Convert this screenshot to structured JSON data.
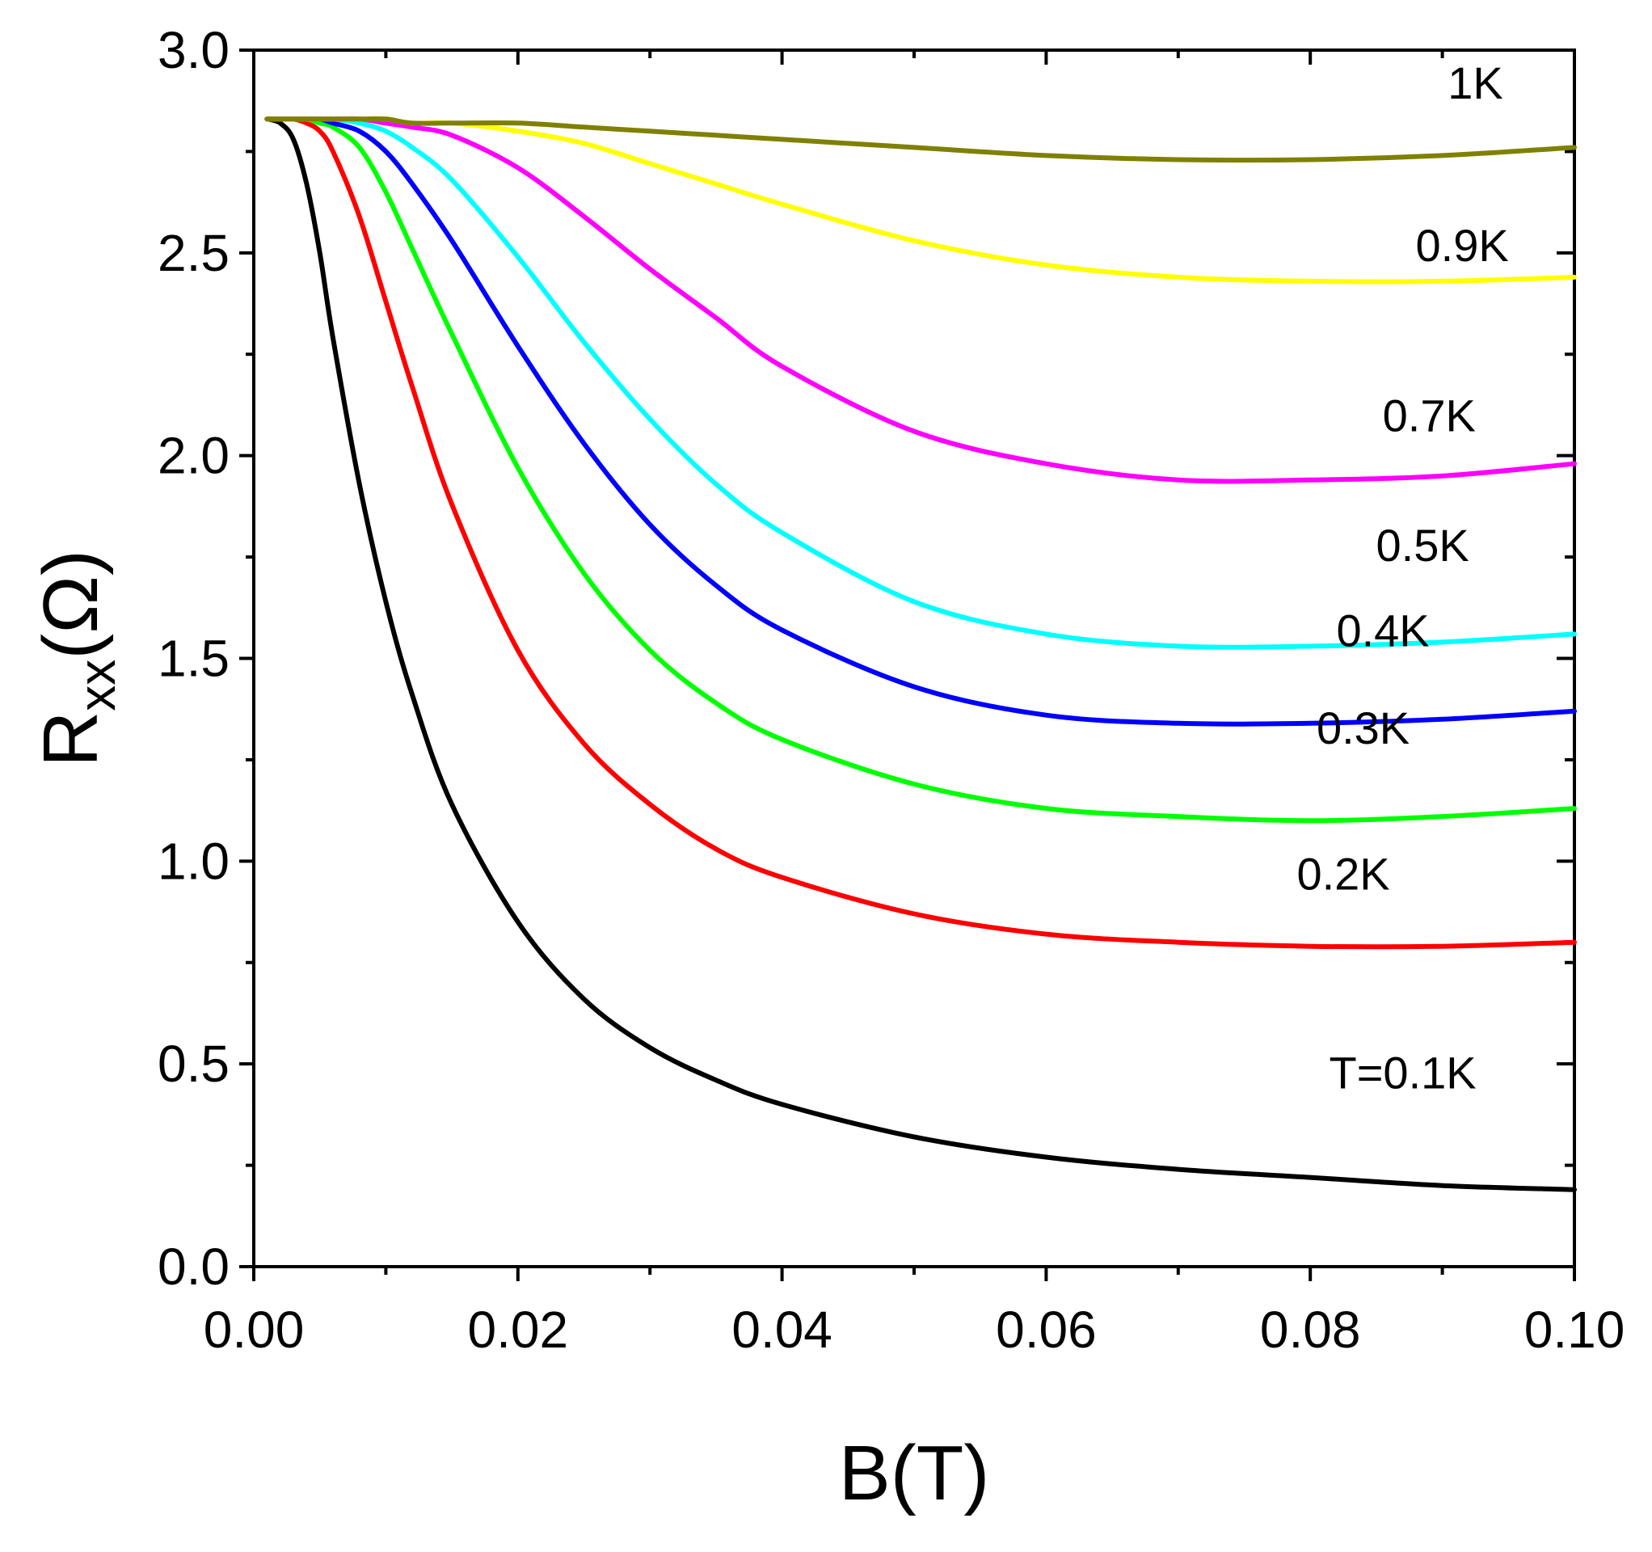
{
  "chart_data": {
    "type": "line",
    "title": "",
    "xlabel": "B(T)",
    "ylabel": {
      "main": "R",
      "subscript": "xx",
      "unit": "(Ω)"
    },
    "xlim": [
      0.0,
      0.1
    ],
    "ylim": [
      0.0,
      3.0
    ],
    "x_major_ticks": [
      0.0,
      0.02,
      0.04,
      0.06,
      0.08,
      0.1
    ],
    "x_tick_labels": [
      "0.00",
      "0.02",
      "0.04",
      "0.06",
      "0.08",
      "0.10"
    ],
    "x_minor_ticks": [
      0.01,
      0.03,
      0.05,
      0.07,
      0.09
    ],
    "y_major_ticks": [
      0.0,
      0.5,
      1.0,
      1.5,
      2.0,
      2.5,
      3.0
    ],
    "y_tick_labels": [
      "0.0",
      "0.5",
      "1.0",
      "1.5",
      "2.0",
      "2.5",
      "3.0"
    ],
    "y_minor_ticks": [
      0.25,
      0.75,
      1.25,
      1.75,
      2.25,
      2.75
    ],
    "grid": false,
    "legend": "inline labels near right end of each curve",
    "x": [
      0.001,
      0.002,
      0.003,
      0.004,
      0.005,
      0.006,
      0.008,
      0.01,
      0.012,
      0.015,
      0.02,
      0.025,
      0.03,
      0.035,
      0.04,
      0.05,
      0.06,
      0.07,
      0.08,
      0.09,
      0.1
    ],
    "series": [
      {
        "name": "T=0.1K",
        "label": "T=0.1K",
        "color": "#000000",
        "label_at": [
          0.087,
          0.44
        ],
        "values": [
          2.83,
          2.82,
          2.78,
          2.67,
          2.5,
          2.29,
          1.93,
          1.64,
          1.41,
          1.14,
          0.85,
          0.66,
          0.54,
          0.46,
          0.4,
          0.32,
          0.27,
          0.24,
          0.22,
          0.2,
          0.19
        ]
      },
      {
        "name": "0.2K",
        "label": "0.2K",
        "color": "#ff0000",
        "label_at": [
          0.0825,
          0.93
        ],
        "values": [
          2.83,
          2.83,
          2.83,
          2.82,
          2.8,
          2.75,
          2.59,
          2.38,
          2.17,
          1.88,
          1.52,
          1.29,
          1.14,
          1.03,
          0.96,
          0.87,
          0.82,
          0.8,
          0.79,
          0.79,
          0.8
        ]
      },
      {
        "name": "0.3K",
        "label": "0.3K",
        "color": "#00ff00",
        "label_at": [
          0.084,
          1.29
        ],
        "values": [
          2.83,
          2.83,
          2.83,
          2.83,
          2.82,
          2.81,
          2.76,
          2.65,
          2.51,
          2.3,
          1.97,
          1.71,
          1.52,
          1.39,
          1.3,
          1.19,
          1.13,
          1.11,
          1.1,
          1.11,
          1.13
        ]
      },
      {
        "name": "0.4K",
        "label": "0.4K",
        "color": "#0000ff",
        "label_at": [
          0.0855,
          1.53
        ],
        "values": [
          2.83,
          2.83,
          2.83,
          2.83,
          2.83,
          2.82,
          2.8,
          2.75,
          2.67,
          2.53,
          2.27,
          2.03,
          1.83,
          1.68,
          1.57,
          1.43,
          1.36,
          1.34,
          1.34,
          1.35,
          1.37
        ]
      },
      {
        "name": "0.5K",
        "label": "0.5K",
        "color": "#00ffff",
        "label_at": [
          0.0885,
          1.74
        ],
        "values": [
          2.83,
          2.83,
          2.83,
          2.83,
          2.83,
          2.83,
          2.82,
          2.8,
          2.76,
          2.68,
          2.49,
          2.28,
          2.09,
          1.93,
          1.81,
          1.64,
          1.56,
          1.53,
          1.53,
          1.54,
          1.56
        ]
      },
      {
        "name": "0.7K",
        "label": "0.7K",
        "color": "#ff00ff",
        "label_at": [
          0.089,
          2.06
        ],
        "values": [
          2.83,
          2.83,
          2.83,
          2.83,
          2.83,
          2.83,
          2.83,
          2.82,
          2.81,
          2.79,
          2.71,
          2.59,
          2.46,
          2.34,
          2.22,
          2.06,
          1.98,
          1.94,
          1.94,
          1.95,
          1.98
        ]
      },
      {
        "name": "0.9K",
        "label": "0.9K",
        "color": "#ffff00",
        "label_at": [
          0.0915,
          2.48
        ],
        "values": [
          2.83,
          2.83,
          2.83,
          2.83,
          2.83,
          2.83,
          2.83,
          2.83,
          2.82,
          2.82,
          2.8,
          2.77,
          2.72,
          2.67,
          2.62,
          2.53,
          2.47,
          2.44,
          2.43,
          2.43,
          2.44
        ]
      },
      {
        "name": "1K",
        "label": "1K",
        "color": "#808000",
        "label_at": [
          0.0925,
          2.88
        ],
        "values": [
          2.83,
          2.83,
          2.83,
          2.83,
          2.83,
          2.83,
          2.83,
          2.83,
          2.82,
          2.82,
          2.82,
          2.81,
          2.8,
          2.79,
          2.78,
          2.76,
          2.74,
          2.73,
          2.73,
          2.74,
          2.76
        ]
      }
    ]
  }
}
